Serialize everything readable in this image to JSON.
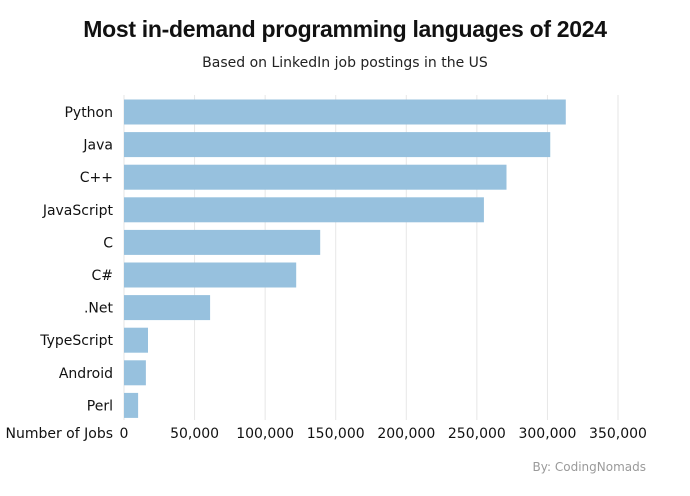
{
  "chart_data": {
    "type": "bar",
    "orientation": "horizontal",
    "title": "Most in-demand programming languages of 2024",
    "subtitle": "Based on LinkedIn job postings in the US",
    "xlabel": "Number of Jobs",
    "categories": [
      "Python",
      "Java",
      "C++",
      "JavaScript",
      "C",
      "C#",
      ".Net",
      "TypeScript",
      "Android",
      "Perl"
    ],
    "values": [
      313000,
      302000,
      271000,
      255000,
      139000,
      122000,
      61000,
      17000,
      15500,
      10000
    ],
    "xlim": [
      0,
      350000
    ],
    "xticks": [
      0,
      50000,
      100000,
      150000,
      200000,
      250000,
      300000,
      350000
    ],
    "xtick_labels": [
      "0",
      "50,000",
      "100,000",
      "150,000",
      "200,000",
      "250,000",
      "300,000",
      "350,000"
    ],
    "grid": "vertical",
    "bar_color": "#97c1de",
    "credit": "By: CodingNomads"
  }
}
